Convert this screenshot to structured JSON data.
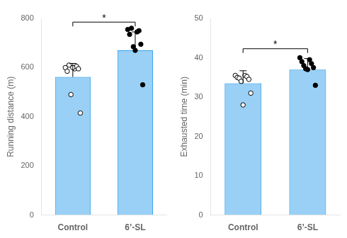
{
  "chart_data": [
    {
      "type": "bar",
      "categories": [
        "Control",
        "6’-SL"
      ],
      "values": [
        562,
        670
      ],
      "errors": [
        55,
        75
      ],
      "points": [
        {
          "marker": "open",
          "color": "black",
          "values": [
            600,
            595,
            585,
            605,
            610,
            595,
            490,
            415,
            600
          ]
        },
        {
          "marker": "filled",
          "color": "black",
          "values": [
            755,
            745,
            735,
            750,
            760,
            695,
            685,
            530,
            670
          ]
        }
      ],
      "y_label": "Running distance (m)",
      "ylim": [
        0,
        800
      ],
      "yticks": [
        0,
        200,
        400,
        600,
        800
      ],
      "annotation": "*",
      "grid": false
    },
    {
      "type": "bar",
      "categories": [
        "Control",
        "6’-SL"
      ],
      "values": [
        33.5,
        37.0
      ],
      "errors": [
        3.2,
        2.8
      ],
      "points": [
        {
          "marker": "open",
          "color": "black",
          "values": [
            35.5,
            35.5,
            35.0,
            35.2,
            34.8,
            34.5,
            34.0,
            31.0,
            28.0
          ]
        },
        {
          "marker": "filled",
          "color": "black",
          "values": [
            40.0,
            39.5,
            39.0,
            38.5,
            38.0,
            37.5,
            37.2,
            33.0,
            37.0
          ]
        }
      ],
      "y_label": "Exhausted time (min)",
      "ylim": [
        0,
        50
      ],
      "yticks": [
        0,
        10,
        20,
        30,
        40,
        50
      ],
      "annotation": "*",
      "grid": false
    }
  ]
}
